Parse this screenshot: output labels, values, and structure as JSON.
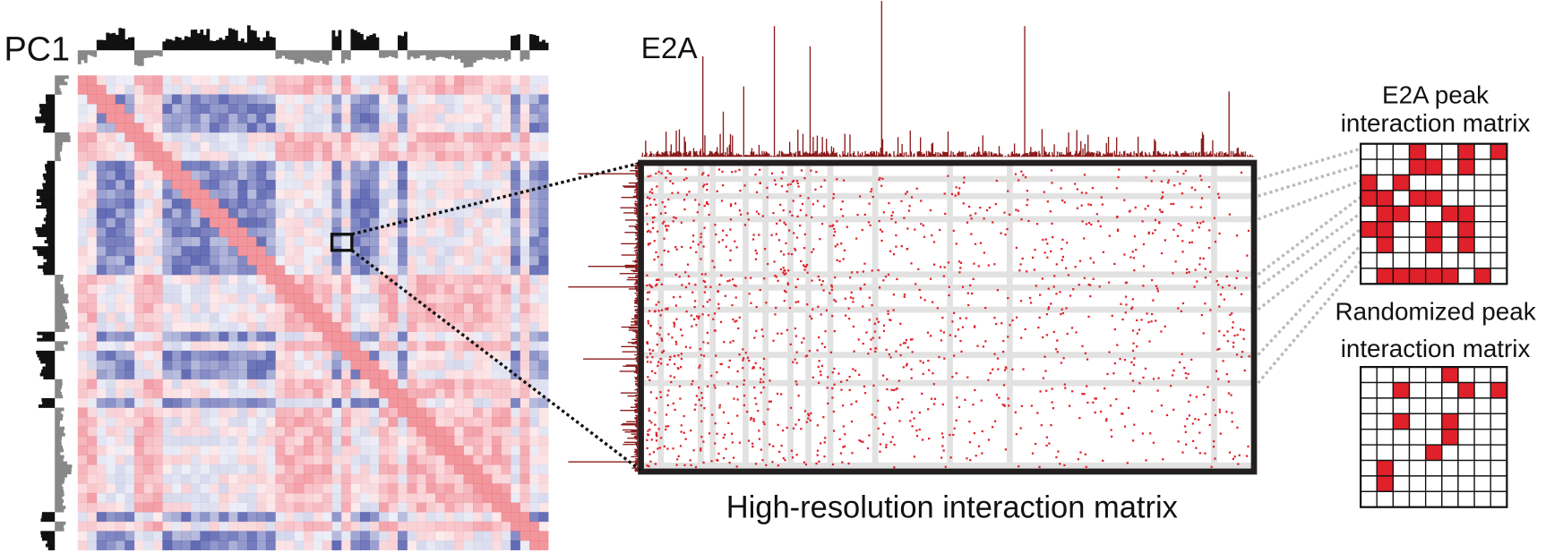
{
  "figure": {
    "pc1_label": "PC1",
    "e2a_label": "E2A",
    "matrix_caption": "High-resolution interaction matrix",
    "peak_matrix_title": [
      "E2A peak",
      "interaction matrix"
    ],
    "random_matrix_title": [
      "Randomized peak",
      "interaction matrix"
    ]
  }
}
